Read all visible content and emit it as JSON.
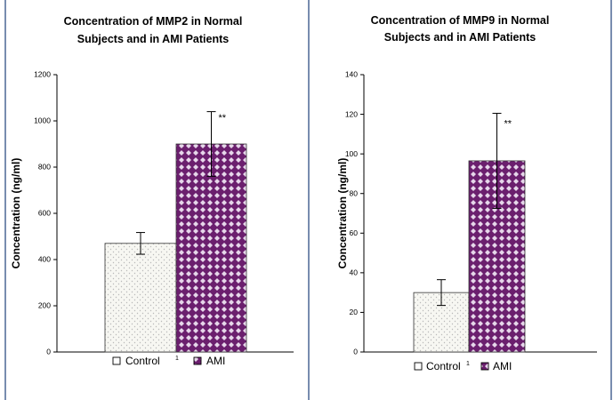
{
  "colors": {
    "background": "#ffffff",
    "axis": "#000000",
    "panel_border": "#1f3f7a",
    "control_fill": "#f7f7f2",
    "control_dot": "#b9b9b9",
    "ami_fill": "#6b1f6e",
    "ami_diamond": "#e6d7ea",
    "bar_stroke": "#333333",
    "error_bar": "#000000",
    "text": "#000000"
  },
  "chart_data": [
    {
      "type": "bar",
      "title_lines": [
        "Concentration of MMP2 in Normal",
        "Subjects and in AMI Patients"
      ],
      "ylabel": "Concentration (ng/ml)",
      "xlabel": "",
      "categories": [
        "1"
      ],
      "ylim": [
        0,
        1200
      ],
      "yticks": [
        0,
        200,
        400,
        600,
        800,
        1000,
        1200
      ],
      "series": [
        {
          "name": "Control",
          "values": [
            470
          ],
          "error": [
            47
          ],
          "pattern": "dots"
        },
        {
          "name": "AMI",
          "values": [
            900
          ],
          "error": [
            140
          ],
          "pattern": "diamonds"
        }
      ],
      "annotations": [
        {
          "series": "AMI",
          "text": "**"
        }
      ],
      "legend": {
        "position": "bottom",
        "separator": "1"
      },
      "grid": false
    },
    {
      "type": "bar",
      "title_lines": [
        "Concentration of MMP9 in Normal",
        "Subjects and in AMI Patients"
      ],
      "ylabel": "Concentration (ng/ml)",
      "xlabel": "",
      "categories": [
        "1"
      ],
      "ylim": [
        0,
        140
      ],
      "yticks": [
        0,
        20,
        40,
        60,
        80,
        100,
        120,
        140
      ],
      "series": [
        {
          "name": "Control",
          "values": [
            30
          ],
          "error": [
            6.5
          ],
          "pattern": "dots"
        },
        {
          "name": "AMI",
          "values": [
            96.5
          ],
          "error": [
            24
          ],
          "pattern": "diamonds"
        }
      ],
      "annotations": [
        {
          "series": "AMI",
          "text": "**"
        }
      ],
      "legend": {
        "position": "bottom",
        "separator": "1"
      },
      "grid": false
    }
  ]
}
